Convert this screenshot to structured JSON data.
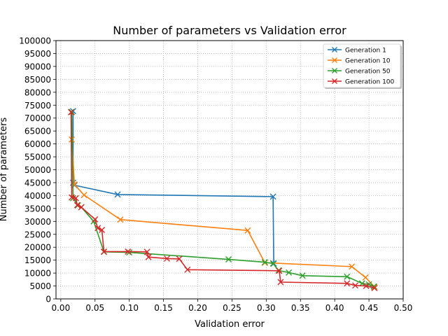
{
  "chart_data": {
    "type": "line",
    "title": "Number of parameters vs Validation error",
    "xlabel": "Validation error",
    "ylabel": "Number of parameters",
    "xlim": [
      -0.007,
      0.5
    ],
    "ylim": [
      0,
      100000
    ],
    "xticks": [
      0.0,
      0.05,
      0.1,
      0.15,
      0.2,
      0.25,
      0.3,
      0.35,
      0.4,
      0.45,
      0.5
    ],
    "xtick_labels": [
      "0.00",
      "0.05",
      "0.10",
      "0.15",
      "0.20",
      "0.25",
      "0.30",
      "0.35",
      "0.40",
      "0.45",
      "0.50"
    ],
    "yticks": [
      0,
      5000,
      10000,
      15000,
      20000,
      25000,
      30000,
      35000,
      40000,
      45000,
      50000,
      55000,
      60000,
      65000,
      70000,
      75000,
      80000,
      85000,
      90000,
      95000,
      100000
    ],
    "ytick_labels": [
      "0",
      "5000",
      "10000",
      "15000",
      "20000",
      "25000",
      "30000",
      "35000",
      "40000",
      "45000",
      "50000",
      "55000",
      "60000",
      "65000",
      "70000",
      "75000",
      "80000",
      "85000",
      "90000",
      "95000",
      "100000"
    ],
    "grid": true,
    "legend_position": "top-right",
    "marker": "x",
    "series": [
      {
        "name": "Generation 1",
        "color": "#1f77b4",
        "points": [
          [
            0.018,
            72700
          ],
          [
            0.018,
            45000
          ],
          [
            0.02,
            44000
          ],
          [
            0.083,
            40400
          ],
          [
            0.31,
            39600
          ],
          [
            0.311,
            13700
          ]
        ]
      },
      {
        "name": "Generation 10",
        "color": "#ff7f0e",
        "points": [
          [
            0.016,
            61700
          ],
          [
            0.02,
            44300
          ],
          [
            0.034,
            40200
          ],
          [
            0.087,
            30700
          ],
          [
            0.273,
            26500
          ],
          [
            0.298,
            14000
          ],
          [
            0.425,
            12500
          ],
          [
            0.445,
            8300
          ],
          [
            0.458,
            4700
          ]
        ]
      },
      {
        "name": "Generation 50",
        "color": "#2ca02c",
        "points": [
          [
            0.016,
            72400
          ],
          [
            0.018,
            39000
          ],
          [
            0.025,
            36200
          ],
          [
            0.03,
            35500
          ],
          [
            0.048,
            30000
          ],
          [
            0.063,
            18200
          ],
          [
            0.1,
            18000
          ],
          [
            0.245,
            15300
          ],
          [
            0.298,
            14200
          ],
          [
            0.31,
            13700
          ],
          [
            0.318,
            11000
          ],
          [
            0.333,
            10200
          ],
          [
            0.353,
            9000
          ],
          [
            0.418,
            8600
          ],
          [
            0.44,
            6000
          ],
          [
            0.45,
            5600
          ],
          [
            0.457,
            4800
          ]
        ]
      },
      {
        "name": "Generation 100",
        "color": "#d62728",
        "points": [
          [
            0.015,
            72300
          ],
          [
            0.016,
            39300
          ],
          [
            0.022,
            39000
          ],
          [
            0.024,
            36300
          ],
          [
            0.03,
            35500
          ],
          [
            0.05,
            30800
          ],
          [
            0.054,
            27400
          ],
          [
            0.06,
            26700
          ],
          [
            0.063,
            18300
          ],
          [
            0.098,
            18300
          ],
          [
            0.126,
            18200
          ],
          [
            0.128,
            16200
          ],
          [
            0.155,
            15600
          ],
          [
            0.173,
            15500
          ],
          [
            0.185,
            11300
          ],
          [
            0.319,
            10900
          ],
          [
            0.321,
            6500
          ],
          [
            0.418,
            6000
          ],
          [
            0.43,
            5200
          ],
          [
            0.446,
            5000
          ],
          [
            0.458,
            4200
          ]
        ]
      }
    ]
  }
}
